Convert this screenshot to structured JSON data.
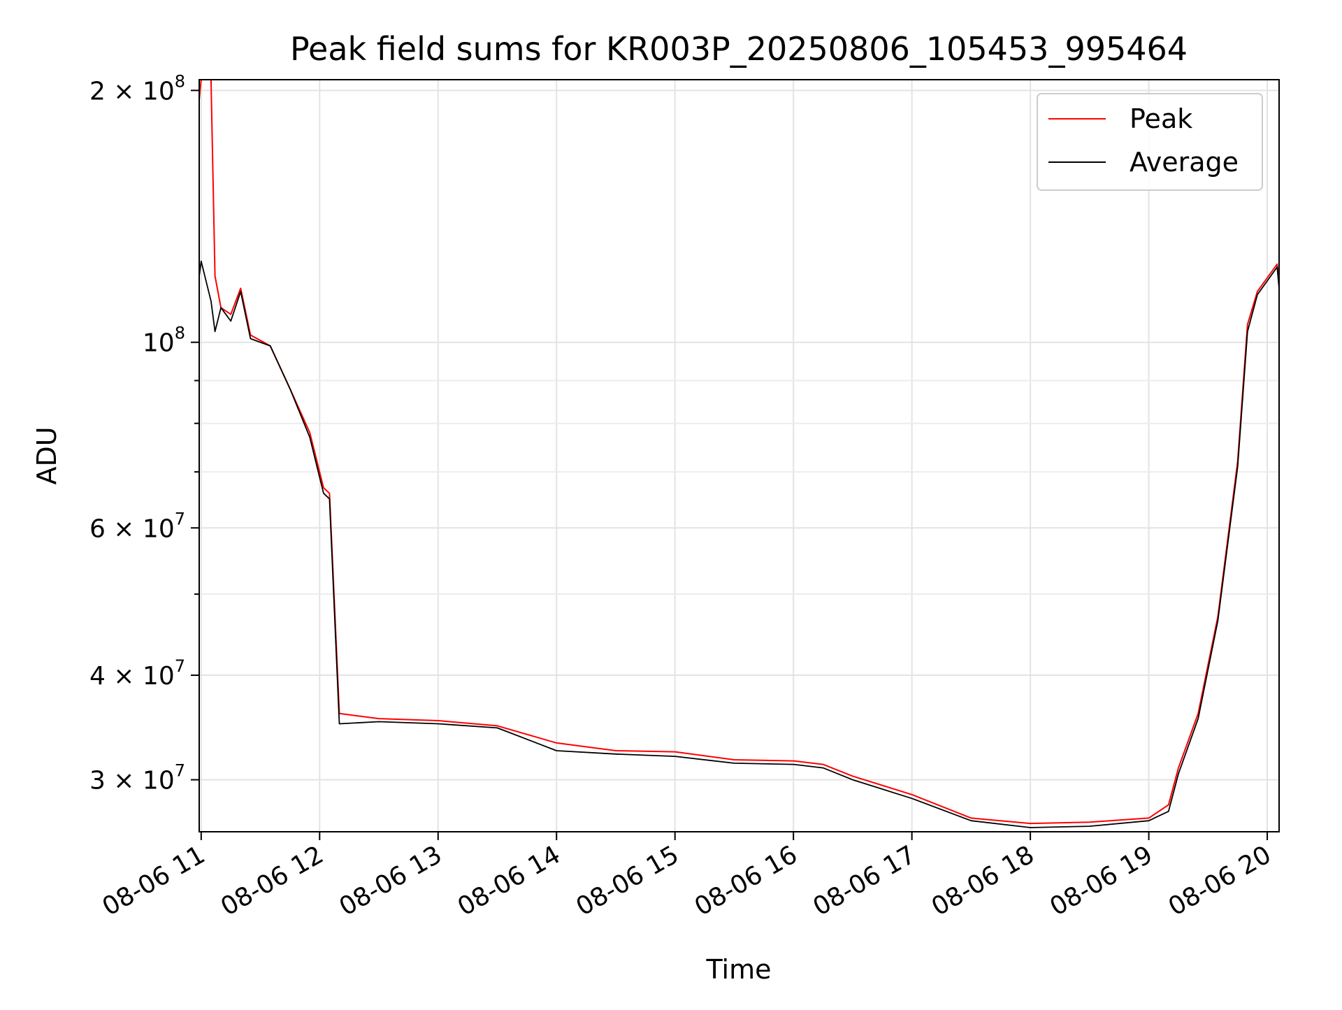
{
  "chart_data": {
    "type": "line",
    "title": "Peak field sums for KR003P_20250806_105453_995464",
    "xlabel": "Time",
    "ylabel": "ADU",
    "y_scale": "log",
    "x_range": [
      "2025-08-06 10:59",
      "2025-08-06 20:06"
    ],
    "ylim": [
      26000000,
      206000000
    ],
    "grid": true,
    "legend_position": "top-right",
    "x_ticks": [
      {
        "t": "2025-08-06 11:00",
        "label": "08-06 11"
      },
      {
        "t": "2025-08-06 12:00",
        "label": "08-06 12"
      },
      {
        "t": "2025-08-06 13:00",
        "label": "08-06 13"
      },
      {
        "t": "2025-08-06 14:00",
        "label": "08-06 14"
      },
      {
        "t": "2025-08-06 15:00",
        "label": "08-06 15"
      },
      {
        "t": "2025-08-06 16:00",
        "label": "08-06 16"
      },
      {
        "t": "2025-08-06 17:00",
        "label": "08-06 17"
      },
      {
        "t": "2025-08-06 18:00",
        "label": "08-06 18"
      },
      {
        "t": "2025-08-06 19:00",
        "label": "08-06 19"
      },
      {
        "t": "2025-08-06 20:00",
        "label": "08-06 20"
      }
    ],
    "y_major_ticks": [
      {
        "value": 200000000,
        "mantissa": "2 × 10",
        "exp": "8"
      },
      {
        "value": 100000000,
        "mantissa": "10",
        "exp": "8"
      },
      {
        "value": 60000000,
        "mantissa": "6 × 10",
        "exp": "7"
      },
      {
        "value": 40000000,
        "mantissa": "4 × 10",
        "exp": "7"
      },
      {
        "value": 30000000,
        "mantissa": "3 × 10",
        "exp": "7"
      }
    ],
    "y_minor_ticks": [
      90000000,
      80000000,
      70000000,
      50000000
    ],
    "series": [
      {
        "name": "Peak",
        "color": "#ff0000",
        "points": [
          [
            "2025-08-06 10:59",
            195000000
          ],
          [
            "2025-08-06 11:00",
            206000000
          ],
          [
            "2025-08-06 11:05",
            206000000
          ],
          [
            "2025-08-06 11:07",
            120000000
          ],
          [
            "2025-08-06 11:10",
            110000000
          ],
          [
            "2025-08-06 11:15",
            108000000
          ],
          [
            "2025-08-06 11:20",
            116000000
          ],
          [
            "2025-08-06 11:25",
            102000000
          ],
          [
            "2025-08-06 11:35",
            99000000
          ],
          [
            "2025-08-06 11:45",
            88000000
          ],
          [
            "2025-08-06 11:55",
            78000000
          ],
          [
            "2025-08-06 12:02",
            67000000
          ],
          [
            "2025-08-06 12:05",
            66000000
          ],
          [
            "2025-08-06 12:10",
            36000000
          ],
          [
            "2025-08-06 12:30",
            35500000
          ],
          [
            "2025-08-06 13:00",
            35300000
          ],
          [
            "2025-08-06 13:30",
            34800000
          ],
          [
            "2025-08-06 14:00",
            33200000
          ],
          [
            "2025-08-06 14:30",
            32500000
          ],
          [
            "2025-08-06 15:00",
            32400000
          ],
          [
            "2025-08-06 15:30",
            31700000
          ],
          [
            "2025-08-06 16:00",
            31600000
          ],
          [
            "2025-08-06 16:15",
            31300000
          ],
          [
            "2025-08-06 16:30",
            30300000
          ],
          [
            "2025-08-06 17:00",
            28800000
          ],
          [
            "2025-08-06 17:30",
            27000000
          ],
          [
            "2025-08-06 18:00",
            26600000
          ],
          [
            "2025-08-06 18:30",
            26700000
          ],
          [
            "2025-08-06 19:00",
            27000000
          ],
          [
            "2025-08-06 19:10",
            28000000
          ],
          [
            "2025-08-06 19:15",
            31000000
          ],
          [
            "2025-08-06 19:25",
            36000000
          ],
          [
            "2025-08-06 19:35",
            47000000
          ],
          [
            "2025-08-06 19:45",
            72000000
          ],
          [
            "2025-08-06 19:50",
            105000000
          ],
          [
            "2025-08-06 19:55",
            115000000
          ],
          [
            "2025-08-06 20:05",
            124000000
          ],
          [
            "2025-08-06 20:06",
            118000000
          ]
        ]
      },
      {
        "name": "Average",
        "color": "#000000",
        "points": [
          [
            "2025-08-06 10:59",
            120000000
          ],
          [
            "2025-08-06 11:00",
            125000000
          ],
          [
            "2025-08-06 11:05",
            112000000
          ],
          [
            "2025-08-06 11:07",
            103000000
          ],
          [
            "2025-08-06 11:10",
            110000000
          ],
          [
            "2025-08-06 11:15",
            106000000
          ],
          [
            "2025-08-06 11:20",
            115000000
          ],
          [
            "2025-08-06 11:25",
            101000000
          ],
          [
            "2025-08-06 11:35",
            99000000
          ],
          [
            "2025-08-06 11:45",
            88000000
          ],
          [
            "2025-08-06 11:55",
            77000000
          ],
          [
            "2025-08-06 12:02",
            66000000
          ],
          [
            "2025-08-06 12:05",
            65000000
          ],
          [
            "2025-08-06 12:10",
            35000000
          ],
          [
            "2025-08-06 12:30",
            35200000
          ],
          [
            "2025-08-06 13:00",
            35000000
          ],
          [
            "2025-08-06 13:30",
            34600000
          ],
          [
            "2025-08-06 14:00",
            32500000
          ],
          [
            "2025-08-06 14:30",
            32200000
          ],
          [
            "2025-08-06 15:00",
            32000000
          ],
          [
            "2025-08-06 15:30",
            31400000
          ],
          [
            "2025-08-06 16:00",
            31300000
          ],
          [
            "2025-08-06 16:15",
            31000000
          ],
          [
            "2025-08-06 16:30",
            30000000
          ],
          [
            "2025-08-06 17:00",
            28500000
          ],
          [
            "2025-08-06 17:30",
            26800000
          ],
          [
            "2025-08-06 18:00",
            26300000
          ],
          [
            "2025-08-06 18:30",
            26400000
          ],
          [
            "2025-08-06 19:00",
            26800000
          ],
          [
            "2025-08-06 19:10",
            27500000
          ],
          [
            "2025-08-06 19:15",
            30500000
          ],
          [
            "2025-08-06 19:25",
            35500000
          ],
          [
            "2025-08-06 19:35",
            46500000
          ],
          [
            "2025-08-06 19:45",
            71000000
          ],
          [
            "2025-08-06 19:50",
            103000000
          ],
          [
            "2025-08-06 19:55",
            114000000
          ],
          [
            "2025-08-06 20:05",
            123000000
          ],
          [
            "2025-08-06 20:06",
            116000000
          ]
        ]
      }
    ]
  }
}
